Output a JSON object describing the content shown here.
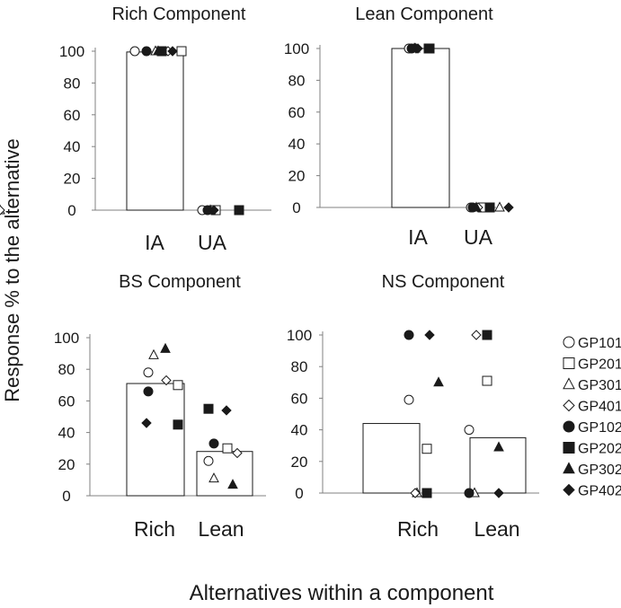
{
  "figure": {
    "ylabel": "Response % to the alternative",
    "xlabel": "Alternatives within a component"
  },
  "legend": [
    {
      "name": "GP101",
      "marker": "circle",
      "filled": false
    },
    {
      "name": "GP201",
      "marker": "square",
      "filled": false
    },
    {
      "name": "GP301",
      "marker": "triangle",
      "filled": false
    },
    {
      "name": "GP401",
      "marker": "diamond",
      "filled": false
    },
    {
      "name": "GP102",
      "marker": "circle",
      "filled": true
    },
    {
      "name": "GP202",
      "marker": "square",
      "filled": true
    },
    {
      "name": "GP302",
      "marker": "triangle",
      "filled": true
    },
    {
      "name": "GP402",
      "marker": "diamond",
      "filled": true
    }
  ],
  "colors": {
    "stroke": "#1a1a1a",
    "axis": "#808080",
    "background": "#ffffff"
  },
  "chart_data": [
    {
      "type": "bar",
      "title": "Rich Component",
      "categories": [
        "IA",
        "UA"
      ],
      "values": [
        99.5,
        0
      ],
      "ylim": [
        0,
        100
      ],
      "yticks": [
        0,
        20,
        40,
        60,
        80,
        100
      ],
      "points": {
        "GP101": [
          100,
          0
        ],
        "GP201": [
          100,
          0
        ],
        "GP301": [
          100,
          0
        ],
        "GP401": [
          100,
          0
        ],
        "GP102": [
          100,
          0
        ],
        "GP202": [
          100,
          0
        ],
        "GP302": [
          100,
          0
        ],
        "GP402": [
          100,
          0
        ]
      }
    },
    {
      "type": "bar",
      "title": "Lean Component",
      "categories": [
        "IA",
        "UA"
      ],
      "values": [
        100,
        0
      ],
      "ylim": [
        0,
        100
      ],
      "yticks": [
        0,
        20,
        40,
        60,
        80,
        100
      ],
      "points": {
        "GP101": [
          100,
          0
        ],
        "GP201": [
          100,
          0
        ],
        "GP301": [
          100,
          0
        ],
        "GP401": [
          100,
          0
        ],
        "GP102": [
          100,
          0
        ],
        "GP202": [
          100,
          0
        ],
        "GP302": [
          100,
          0
        ],
        "GP402": [
          100,
          0
        ]
      }
    },
    {
      "type": "bar",
      "title": "BS Component",
      "categories": [
        "Rich",
        "Lean"
      ],
      "values": [
        71,
        28
      ],
      "ylim": [
        0,
        100
      ],
      "yticks": [
        0,
        20,
        40,
        60,
        80,
        100
      ],
      "points": {
        "GP101": [
          78,
          22
        ],
        "GP201": [
          70,
          30
        ],
        "GP301": [
          89,
          11
        ],
        "GP401": [
          73,
          27
        ],
        "GP102": [
          66,
          33
        ],
        "GP202": [
          45,
          55
        ],
        "GP302": [
          93,
          7
        ],
        "GP402": [
          46,
          54
        ]
      }
    },
    {
      "type": "bar",
      "title": "NS Component",
      "categories": [
        "Rich",
        "Lean"
      ],
      "values": [
        44,
        35
      ],
      "ylim": [
        0,
        100
      ],
      "yticks": [
        0,
        20,
        40,
        60,
        80,
        100
      ],
      "points": {
        "GP101": [
          59,
          40
        ],
        "GP201": [
          28,
          71
        ],
        "GP301": [
          0,
          0
        ],
        "GP401": [
          0,
          100
        ],
        "GP102": [
          100,
          0
        ],
        "GP202": [
          0,
          100
        ],
        "GP302": [
          70,
          29
        ],
        "GP402": [
          100,
          0
        ]
      }
    }
  ]
}
